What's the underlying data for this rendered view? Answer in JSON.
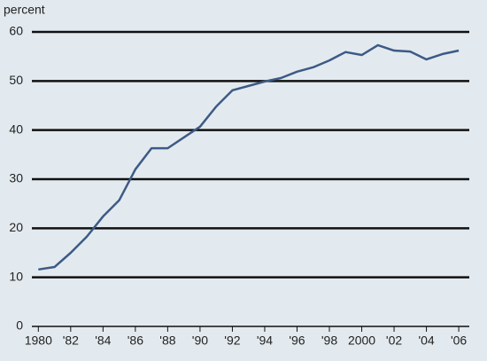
{
  "chart_data": {
    "type": "line",
    "y_label": "percent",
    "x": [
      1980,
      1981,
      1982,
      1983,
      1984,
      1985,
      1986,
      1987,
      1988,
      1989,
      1990,
      1991,
      1992,
      1993,
      1994,
      1995,
      1996,
      1997,
      1998,
      1999,
      2000,
      2001,
      2002,
      2003,
      2004,
      2005,
      2006
    ],
    "series": [
      {
        "name": "percent",
        "color": "#3d5a86",
        "values": [
          11.6,
          12.1,
          15,
          18.3,
          22.4,
          25.7,
          32,
          36.3,
          36.3,
          38.5,
          40.7,
          44.8,
          48.1,
          49,
          49.9,
          50.6,
          51.9,
          52.8,
          54.2,
          55.9,
          55.3,
          57.3,
          56.2,
          56,
          54.4,
          55.5,
          56.2
        ]
      }
    ],
    "xlim": [
      1979.6,
      2007.2
    ],
    "xticks": [
      1980,
      {
        "value": 1982,
        "label": "'82"
      },
      {
        "value": 1984,
        "label": "'84"
      },
      {
        "value": 1986,
        "label": "'86"
      },
      {
        "value": 1988,
        "label": "'88"
      },
      {
        "value": 1990,
        "label": "'90"
      },
      {
        "value": 1992,
        "label": "'92"
      },
      {
        "value": 1994,
        "label": "'94"
      },
      {
        "value": 1996,
        "label": "'96"
      },
      {
        "value": 1998,
        "label": "'98"
      },
      2000,
      {
        "value": 2002,
        "label": "'02"
      },
      {
        "value": 2004,
        "label": "'04"
      },
      {
        "value": 2006,
        "label": "'06"
      }
    ],
    "ylim": [
      0,
      60
    ],
    "yticks": [
      0,
      10,
      20,
      30,
      40,
      50,
      60
    ],
    "grid": true
  }
}
